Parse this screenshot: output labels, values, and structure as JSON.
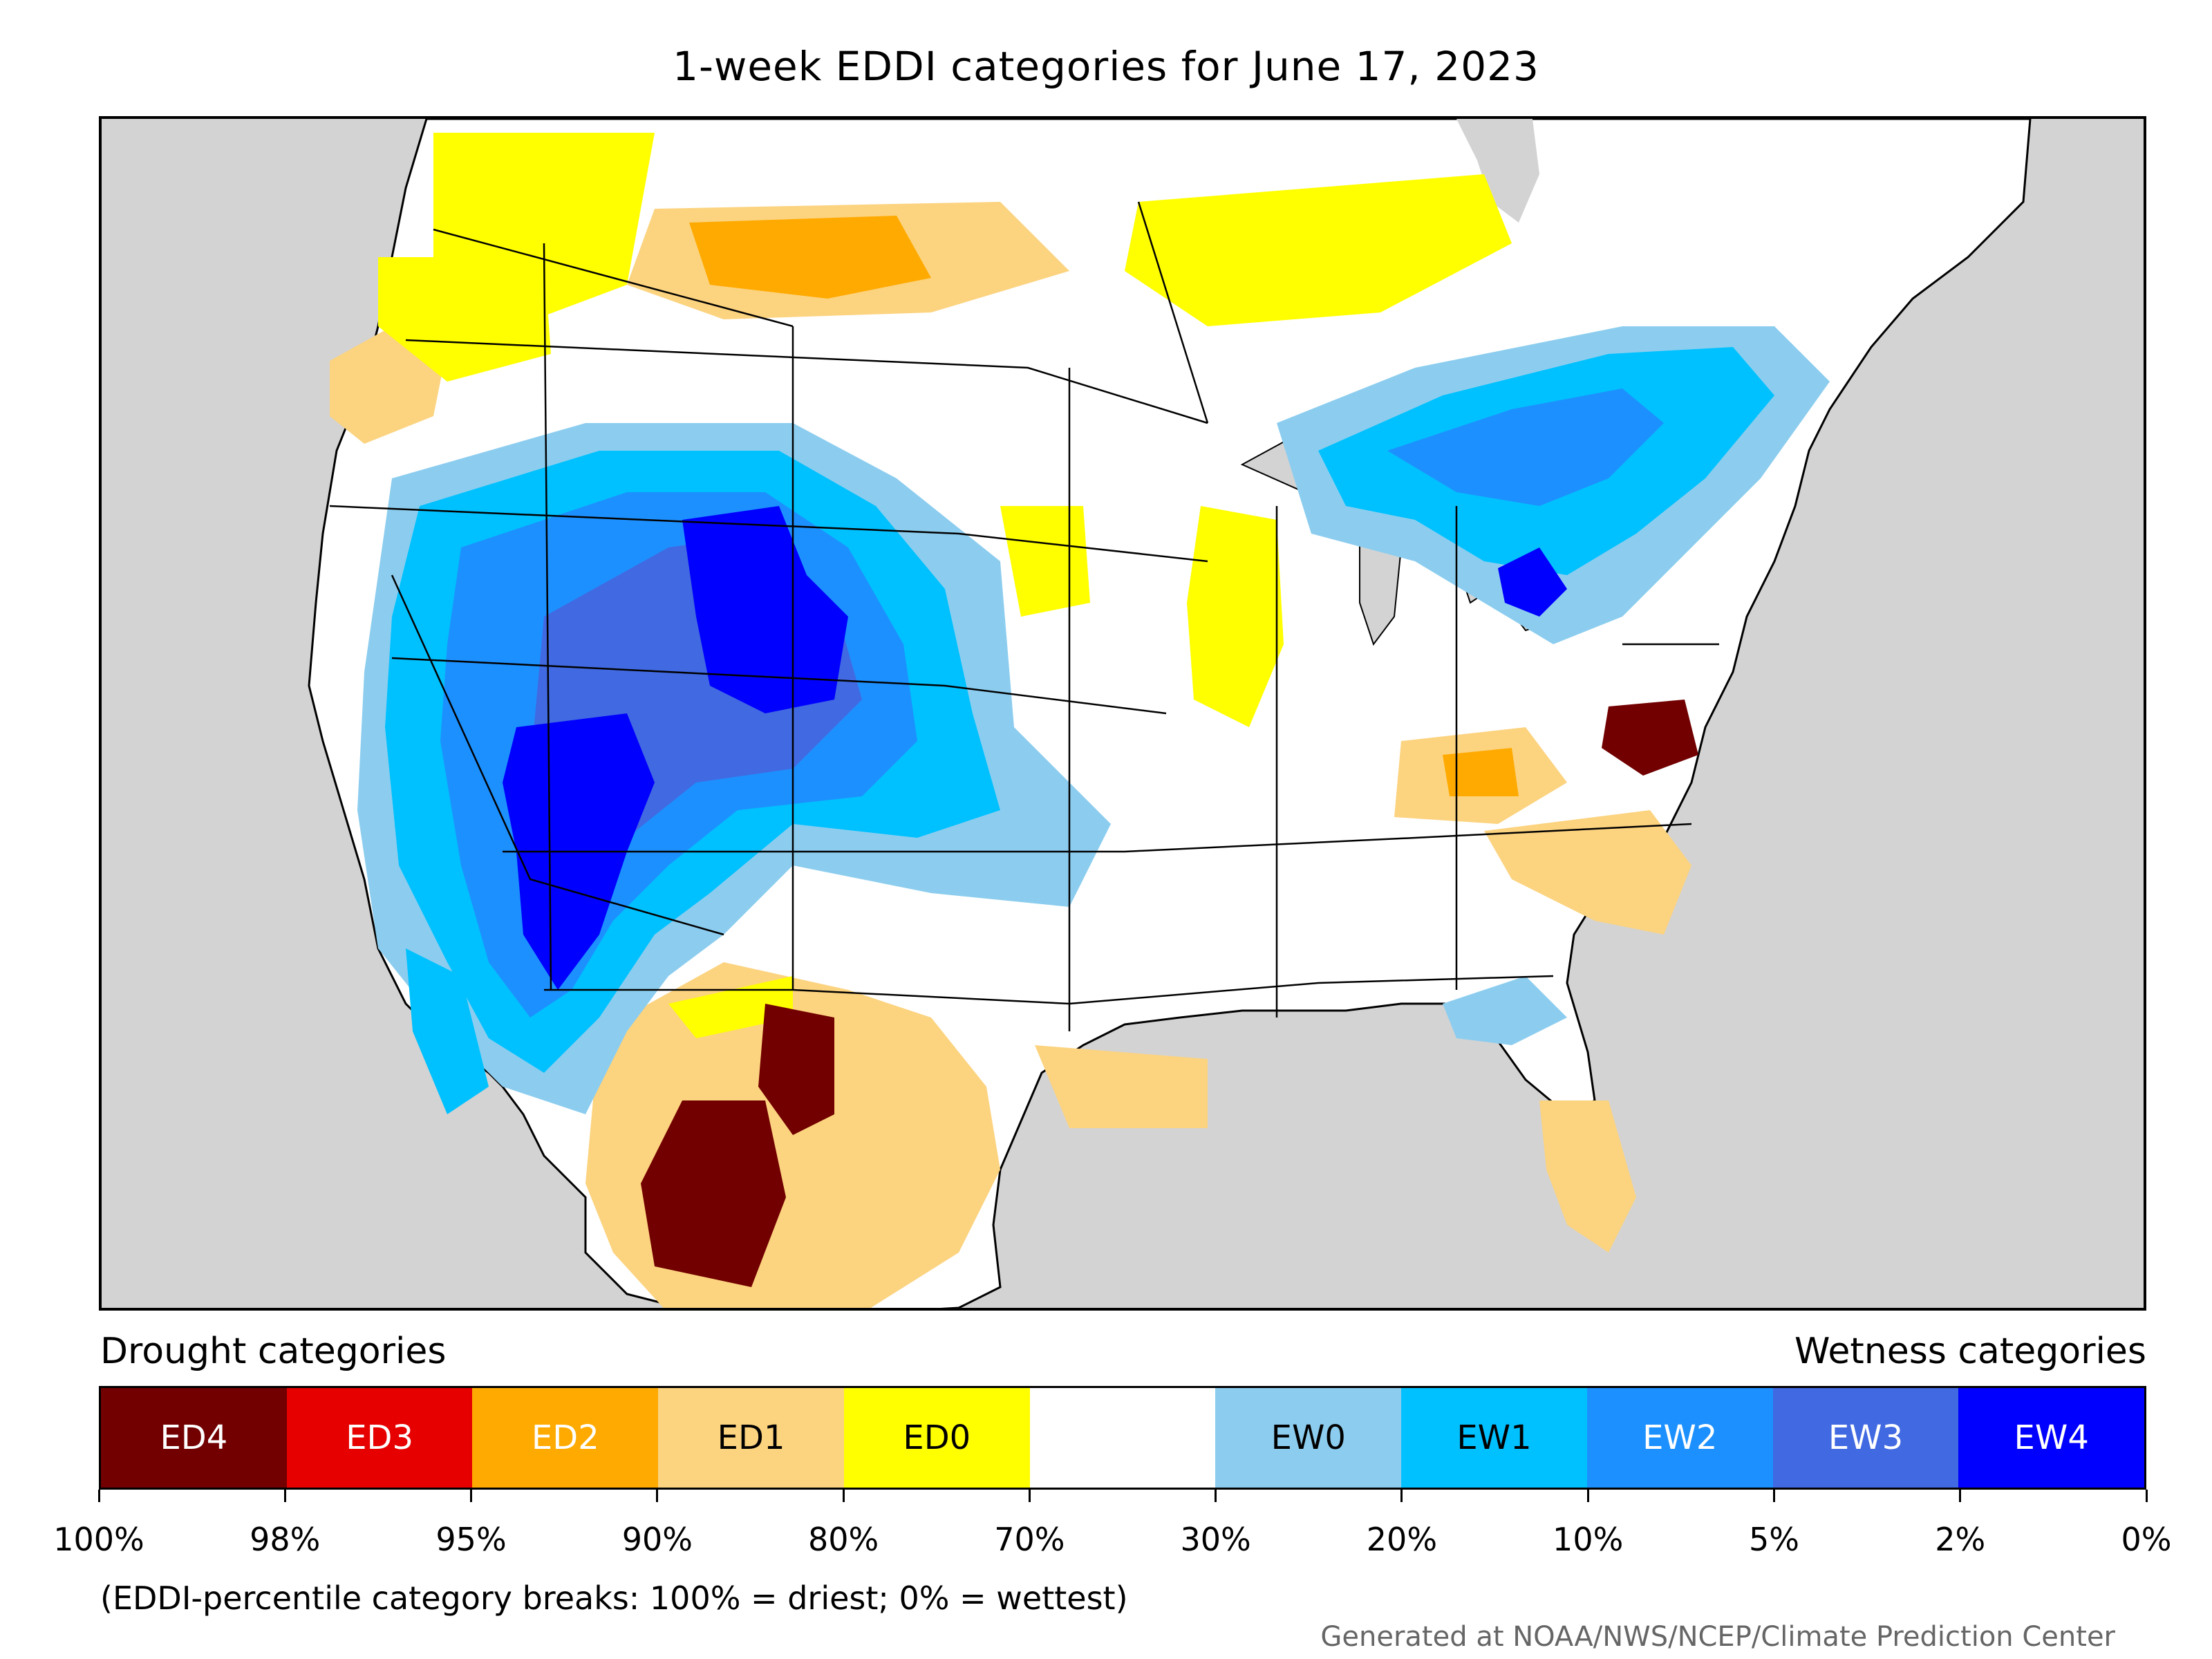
{
  "title": "1-week EDDI categories for June 17, 2023",
  "legend": {
    "drought_header": "Drought categories",
    "wetness_header": "Wetness categories",
    "categories": [
      {
        "label": "ED4",
        "color": "#720000",
        "text_color": "#ffffff"
      },
      {
        "label": "ED3",
        "color": "#e60000",
        "text_color": "#ffffff"
      },
      {
        "label": "ED2",
        "color": "#ffaa00",
        "text_color": "#ffffff"
      },
      {
        "label": "ED1",
        "color": "#fcd37f",
        "text_color": "#000000"
      },
      {
        "label": "ED0",
        "color": "#ffff00",
        "text_color": "#000000"
      },
      {
        "label": "",
        "color": "#ffffff",
        "text_color": "#000000"
      },
      {
        "label": "EW0",
        "color": "#8ccdef",
        "text_color": "#000000"
      },
      {
        "label": "EW1",
        "color": "#00c1ff",
        "text_color": "#000000"
      },
      {
        "label": "EW2",
        "color": "#1d90ff",
        "text_color": "#ffffff"
      },
      {
        "label": "EW3",
        "color": "#4169e1",
        "text_color": "#ffffff"
      },
      {
        "label": "EW4",
        "color": "#0000ff",
        "text_color": "#ffffff"
      }
    ],
    "tick_labels": [
      "100%",
      "98%",
      "95%",
      "90%",
      "80%",
      "70%",
      "30%",
      "20%",
      "10%",
      "5%",
      "2%",
      "0%"
    ]
  },
  "footnote": "(EDDI-percentile category breaks: 100% = driest; 0% = wettest)",
  "credit": "Generated at NOAA/NWS/NCEP/Climate Prediction Center",
  "colors": {
    "background_land_outside": "#d3d3d3",
    "water": "#d3d3d3",
    "no_anomaly": "#ffffff"
  }
}
